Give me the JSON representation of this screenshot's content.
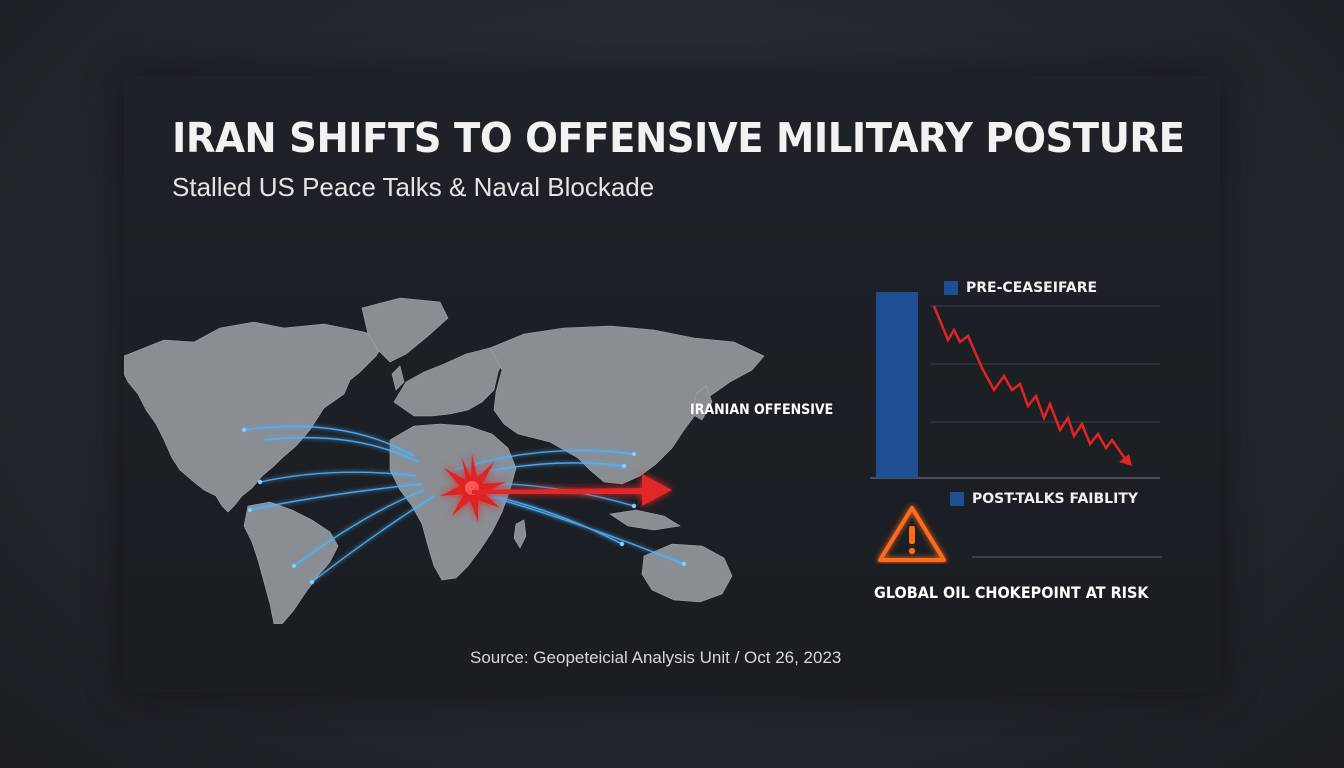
{
  "header": {
    "title": "IRAN SHIFTS TO OFFENSIVE MILITARY POSTURE",
    "subtitle": "Stalled US Peace Talks & Naval Blockade"
  },
  "map": {
    "arrow_label": "IRANIAN OFFENSIVE",
    "colors": {
      "land": "#8a8d92",
      "routes": "#4fb3ff",
      "strike": "#e02424",
      "arrow": "#e32626"
    }
  },
  "chart_data": {
    "type": "bar",
    "series": [
      {
        "name": "PRE-CEASEIFARE",
        "color": "#1f4f93"
      },
      {
        "name": "POST-TALKS FAIBLITY",
        "color": "#1f4f93"
      }
    ],
    "trend": {
      "color": "#e02424",
      "direction": "down"
    },
    "grid": true
  },
  "alert": {
    "label": "GLOBAL OIL CHOKEPOINT AT RISK",
    "icon": "warning-icon",
    "color": "#ff6a1a"
  },
  "footer": {
    "source": "Source: Geopeteicial Analysis Unit / Oct 26, 2023"
  }
}
